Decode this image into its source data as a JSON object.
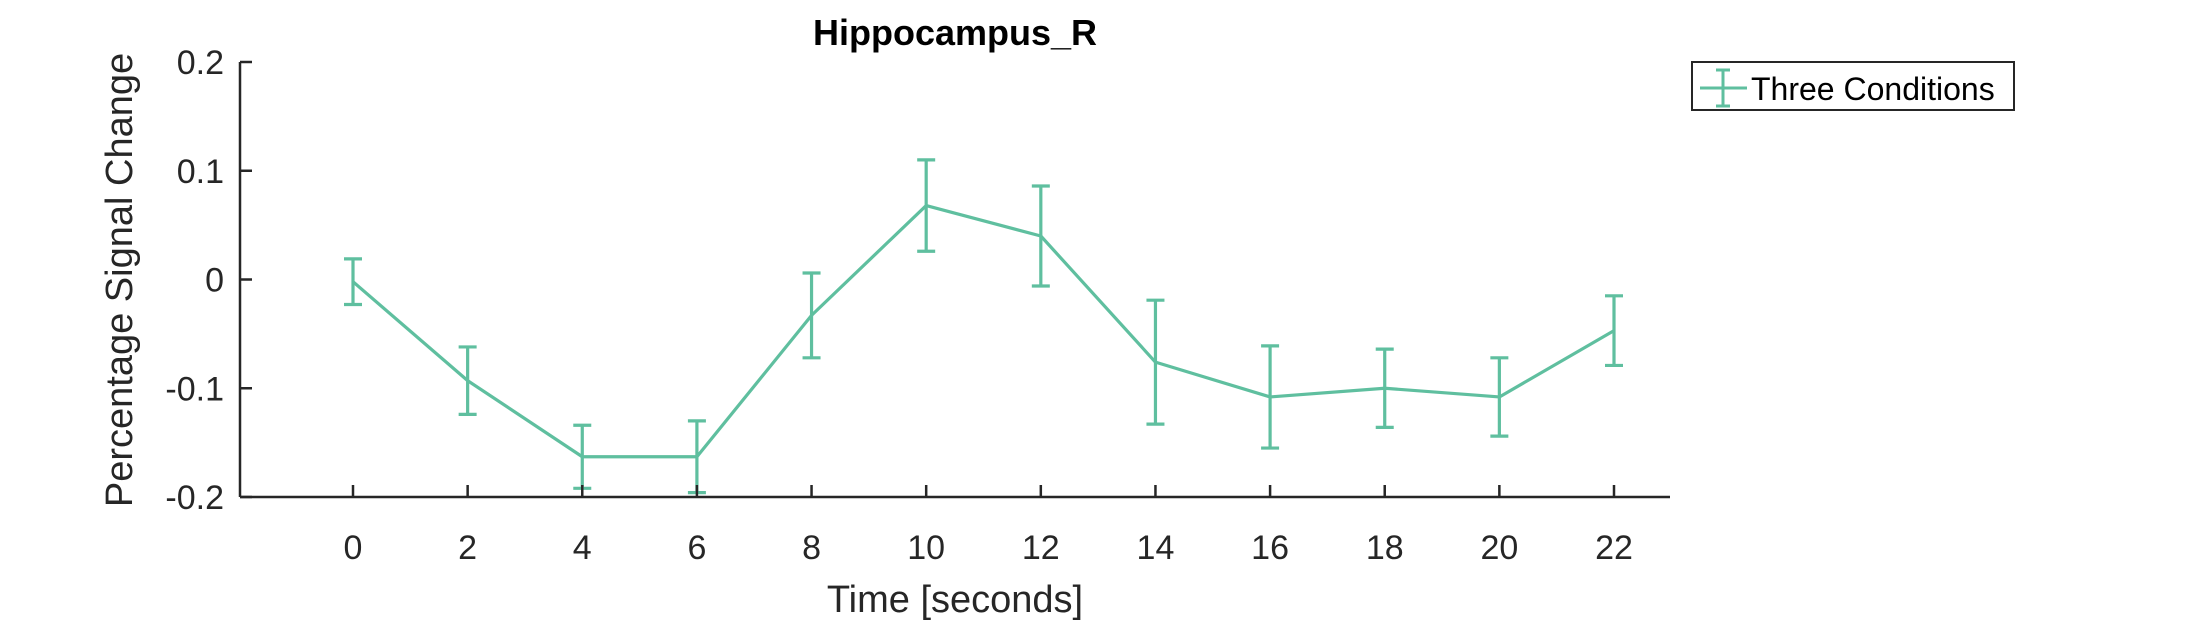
{
  "chart_data": {
    "type": "line",
    "title": "Hippocampus_R",
    "xlabel": "Time [seconds]",
    "ylabel": "Percentage Signal Change",
    "xlim": [
      -2,
      23
    ],
    "ylim": [
      -0.2,
      0.2
    ],
    "x_ticks": [
      0,
      2,
      4,
      6,
      8,
      10,
      12,
      14,
      16,
      18,
      20,
      22
    ],
    "x_tick_labels": [
      "0",
      "2",
      "4",
      "6",
      "8",
      "10",
      "12",
      "14",
      "16",
      "18",
      "20",
      "22"
    ],
    "y_ticks": [
      -0.2,
      -0.1,
      0,
      0.1,
      0.2
    ],
    "y_tick_labels": [
      "-0.2",
      "-0.1",
      "0",
      "0.1",
      "0.2"
    ],
    "grid": false,
    "legend_position": "top-right, outside plot",
    "series": [
      {
        "name": "Three Conditions",
        "color": "#5fbf9f",
        "x": [
          0,
          2,
          4,
          6,
          8,
          10,
          12,
          14,
          16,
          18,
          20,
          22
        ],
        "y": [
          -0.002,
          -0.093,
          -0.163,
          -0.163,
          -0.033,
          0.068,
          0.04,
          -0.076,
          -0.108,
          -0.1,
          -0.108,
          -0.047
        ],
        "error": [
          0.021,
          0.031,
          0.029,
          0.033,
          0.039,
          0.042,
          0.046,
          0.057,
          0.047,
          0.036,
          0.036,
          0.032
        ]
      }
    ]
  }
}
